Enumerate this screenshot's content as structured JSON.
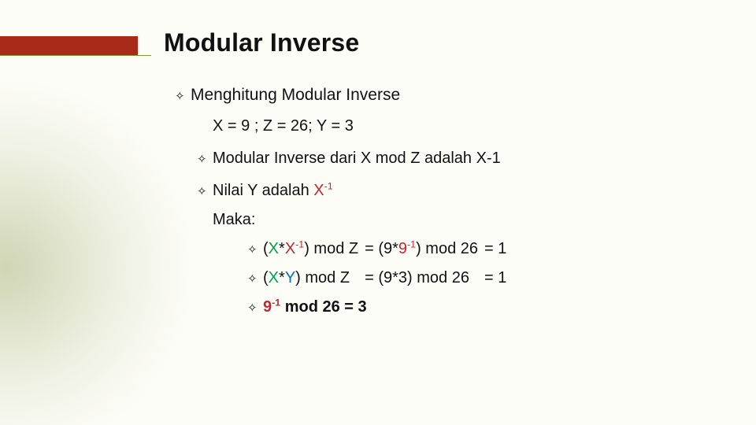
{
  "colors": {
    "accent_bar": "#a82b1a",
    "accent_line": "#7a9c3a",
    "bg_glow": "rgba(140,155,80,0.35)",
    "text": "#111111",
    "x": "#00a14b",
    "xi": "#c1272d",
    "y": "#0071bc"
  },
  "title": "Modular Inverse",
  "bullet_glyph": "✧",
  "l1": {
    "text": "Menghitung Modular Inverse"
  },
  "l1_body": "X = 9 ; Z = 26; Y = 3",
  "l2a": {
    "text": "Modular Inverse dari  X mod Z adalah X-1"
  },
  "l2b": {
    "prefix": "Nilai Y adalah ",
    "x": "X",
    "sup": "-1"
  },
  "maka": "Maka:",
  "eq1": {
    "lhs_open": "(",
    "lhs_x": "X",
    "lhs_star": "*",
    "lhs_xi": "X",
    "lhs_sup": "-1",
    "lhs_close": ") mod Z",
    "mid_open": "= (9*",
    "mid_xi": "9",
    "mid_sup": "-1",
    "mid_close": ") mod 26",
    "rhs": "= 1"
  },
  "eq2": {
    "lhs_open": "(",
    "lhs_x": "X",
    "lhs_star": "*",
    "lhs_y": "Y",
    "lhs_close": ") mod Z",
    "mid": "= (9*3) mod 26",
    "rhs": "= 1"
  },
  "eq3": {
    "xi": "9",
    "sup": "-1",
    "rest": " mod 26 = 3"
  }
}
